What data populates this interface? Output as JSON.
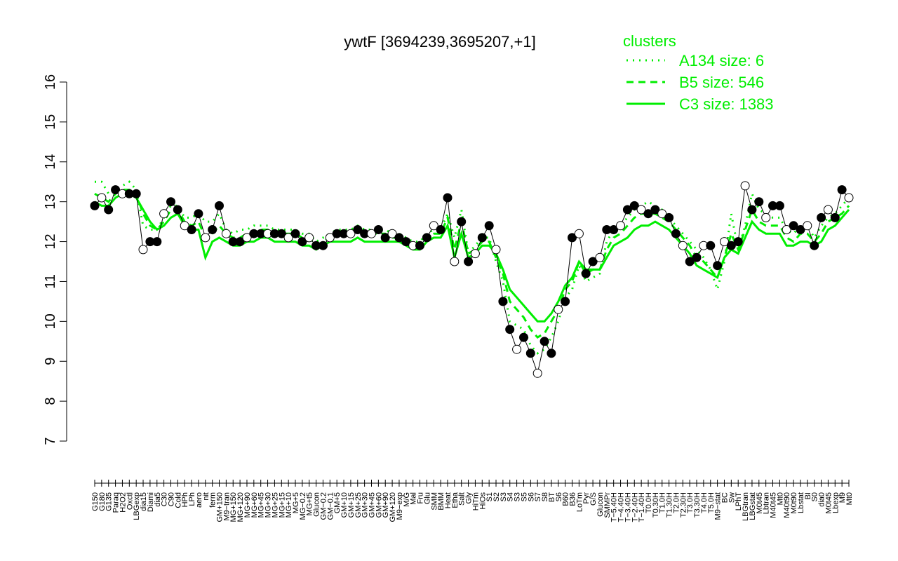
{
  "chart_data": {
    "type": "line",
    "title": "ywtF [3694239,3695207,+1]",
    "xlabel": "",
    "ylabel": "",
    "ylim": [
      7,
      16
    ],
    "yticks": [
      7,
      8,
      9,
      10,
      11,
      12,
      13,
      14,
      15,
      16
    ],
    "x_tick_labels": [
      "G150",
      "G180",
      "G135",
      "Paraq",
      "H2O2",
      "Oxctl",
      "LBGexp",
      "dia15",
      "Diami",
      "dia5",
      "C30",
      "C90",
      "Cold",
      "HPh",
      "LPh",
      "aero",
      "nit",
      "ferm",
      "GM+150",
      "M9−tran",
      "MG+150",
      "MG+120",
      "MG+90",
      "MG+60",
      "MG+45",
      "MG+30",
      "MG+25",
      "MG+15",
      "MG+10",
      "MG+5",
      "MG−0.2",
      "MG+t5",
      "Glucon",
      "GM−0.2",
      "GM−0.1",
      "GM+5",
      "GM+10",
      "GM+15",
      "GM+25",
      "GM+30",
      "GM+45",
      "GM+60",
      "GM+90",
      "GM+120",
      "M9−exp",
      "M/G",
      "Mal",
      "Fru",
      "Glu",
      "SMM",
      "BMM",
      "Heat",
      "Etha",
      "Salt",
      "Gly",
      "HiTm",
      "HiOs",
      "S1",
      "S2",
      "S3",
      "S4",
      "S3",
      "S5",
      "S6",
      "S7",
      "S8",
      "BT",
      "S6",
      "B60",
      "B36",
      "LoTm",
      "Pyr",
      "G/S",
      "Glucon",
      "SMMPr",
      "T−5.40H",
      "T−4.40H",
      "T−3.40H",
      "T−2.40H",
      "T−1.40H",
      "T0.0H",
      "T0.30H",
      "T1.0H",
      "T1.30H",
      "T2.0H",
      "T2.30H",
      "T3.0H",
      "T3.30H",
      "T4.0H",
      "T5.0H",
      "M9−stat",
      "BC",
      "Sw",
      "LPhT",
      "LBGtran",
      "LBGstat",
      "M0t45",
      "Lbtran",
      "M40t45",
      "Mt0",
      "M40t90",
      "M0t90",
      "Lbstat",
      "BI",
      "S0",
      "dia0",
      "M0t45",
      "Lbexp",
      "M9",
      "Mt0"
    ],
    "series": [
      {
        "name": "A134 size: 6",
        "style": "dotted",
        "color": "#00ee00",
        "values": [
          13.5,
          13.5,
          13.2,
          13.3,
          13.4,
          13.5,
          13.3,
          12.4,
          12.3,
          12.3,
          12.6,
          12.9,
          12.9,
          12.6,
          12.6,
          12.7,
          12.5,
          12.5,
          12.7,
          12.3,
          12.2,
          12.3,
          12.3,
          12.4,
          12.4,
          12.4,
          12.3,
          12.3,
          12.3,
          12.3,
          12.2,
          12.2,
          12.0,
          12.1,
          12.2,
          12.3,
          12.3,
          12.3,
          12.4,
          12.3,
          12.3,
          12.3,
          12.3,
          12.2,
          12.2,
          12.1,
          12.0,
          12.0,
          12.2,
          12.3,
          12.3,
          12.7,
          12.1,
          12.8,
          11.7,
          11.9,
          12.1,
          12.1,
          11.5,
          11.0,
          10.0,
          9.9,
          9.8,
          9.4,
          9.2,
          9.3,
          9.6,
          10.0,
          10.6,
          10.8,
          11.4,
          11.0,
          11.1,
          11.2,
          12.0,
          12.3,
          12.4,
          12.6,
          12.8,
          12.9,
          13.0,
          12.9,
          12.8,
          12.6,
          12.4,
          12.2,
          12.0,
          11.8,
          11.6,
          11.3,
          10.8,
          11.5,
          12.7,
          11.8,
          12.4,
          13.2,
          12.8,
          12.7,
          12.6,
          12.6,
          12.3,
          12.2,
          12.4,
          12.4,
          12.1,
          12.4,
          12.6,
          12.7,
          12.9,
          13.1
        ]
      },
      {
        "name": "B5 size: 546",
        "style": "dashed",
        "color": "#00ee00",
        "values": [
          13.2,
          13.1,
          13.0,
          13.2,
          13.3,
          13.3,
          13.2,
          12.7,
          12.4,
          12.3,
          12.5,
          12.8,
          12.8,
          12.5,
          12.4,
          12.5,
          12.1,
          12.2,
          12.4,
          12.2,
          12.1,
          12.1,
          12.2,
          12.2,
          12.3,
          12.3,
          12.2,
          12.2,
          12.2,
          12.2,
          12.1,
          12.1,
          11.9,
          12.0,
          12.1,
          12.2,
          12.2,
          12.2,
          12.3,
          12.2,
          12.2,
          12.2,
          12.2,
          12.1,
          12.1,
          12.0,
          11.9,
          11.9,
          12.1,
          12.2,
          12.2,
          12.6,
          11.8,
          12.5,
          11.7,
          11.8,
          12.0,
          12.0,
          11.6,
          11.2,
          10.5,
          10.3,
          10.1,
          9.8,
          9.6,
          9.7,
          10.0,
          10.3,
          10.8,
          11.0,
          11.5,
          11.2,
          11.3,
          11.3,
          11.8,
          12.1,
          12.2,
          12.4,
          12.6,
          12.7,
          12.7,
          12.7,
          12.6,
          12.5,
          12.3,
          12.1,
          11.9,
          11.6,
          11.5,
          11.3,
          11.1,
          11.6,
          12.2,
          11.8,
          12.3,
          12.8,
          12.5,
          12.4,
          12.4,
          12.4,
          12.1,
          12.0,
          12.2,
          12.2,
          12.0,
          12.2,
          12.5,
          12.6,
          12.7,
          12.9
        ]
      },
      {
        "name": "C3 size: 1383",
        "style": "solid",
        "color": "#00ee00",
        "values": [
          13.0,
          12.9,
          12.9,
          13.1,
          13.2,
          13.2,
          13.1,
          12.8,
          12.5,
          12.3,
          12.4,
          12.6,
          12.7,
          12.4,
          12.3,
          12.3,
          11.6,
          12.0,
          12.1,
          12.0,
          11.9,
          11.9,
          12.0,
          12.0,
          12.1,
          12.1,
          12.0,
          12.0,
          12.0,
          12.0,
          11.9,
          11.9,
          11.8,
          11.9,
          12.0,
          12.0,
          12.0,
          12.0,
          12.1,
          12.0,
          12.0,
          12.0,
          12.0,
          12.0,
          12.0,
          11.9,
          11.8,
          11.8,
          12.0,
          12.1,
          12.1,
          12.4,
          11.6,
          12.2,
          11.6,
          11.7,
          11.9,
          11.9,
          11.7,
          11.3,
          10.8,
          10.6,
          10.4,
          10.2,
          10.0,
          10.0,
          10.2,
          10.5,
          10.9,
          11.1,
          11.5,
          11.3,
          11.3,
          11.3,
          11.6,
          11.9,
          12.0,
          12.1,
          12.3,
          12.4,
          12.4,
          12.5,
          12.4,
          12.3,
          12.1,
          11.9,
          11.7,
          11.4,
          11.3,
          11.2,
          11.1,
          11.6,
          11.8,
          11.7,
          12.1,
          12.5,
          12.3,
          12.2,
          12.2,
          12.2,
          11.9,
          11.9,
          12.0,
          12.0,
          11.9,
          12.0,
          12.3,
          12.4,
          12.6,
          12.8
        ]
      },
      {
        "name": "",
        "style": "points",
        "color": "#000000",
        "values": [
          12.9,
          13.1,
          12.8,
          13.3,
          13.2,
          13.2,
          13.2,
          11.8,
          12.0,
          12.0,
          12.7,
          13.0,
          12.8,
          12.4,
          12.3,
          12.7,
          12.1,
          12.3,
          12.9,
          12.2,
          12.0,
          12.0,
          12.1,
          12.2,
          12.2,
          12.2,
          12.2,
          12.2,
          12.1,
          12.2,
          12.0,
          12.1,
          11.9,
          11.9,
          12.1,
          12.2,
          12.2,
          12.2,
          12.3,
          12.2,
          12.2,
          12.3,
          12.1,
          12.2,
          12.1,
          12.0,
          11.9,
          11.9,
          12.1,
          12.4,
          12.3,
          13.1,
          11.5,
          12.5,
          11.5,
          11.7,
          12.1,
          12.4,
          11.8,
          10.5,
          9.8,
          9.3,
          9.6,
          9.2,
          8.7,
          9.5,
          9.2,
          10.3,
          10.5,
          12.1,
          12.2,
          11.2,
          11.5,
          11.6,
          12.3,
          12.3,
          12.4,
          12.8,
          12.9,
          12.8,
          12.7,
          12.8,
          12.7,
          12.6,
          12.2,
          11.9,
          11.5,
          11.6,
          11.9,
          11.9,
          11.4,
          12.0,
          11.9,
          12.0,
          13.4,
          12.8,
          13.0,
          12.6,
          12.9,
          12.9,
          12.3,
          12.4,
          12.3,
          12.4,
          11.9,
          12.6,
          12.8,
          12.6,
          13.3,
          13.1
        ]
      }
    ],
    "legend": {
      "title": "clusters",
      "position": "top-right",
      "entries": [
        "A134 size: 6",
        "B5 size: 546",
        "C3 size: 1383"
      ]
    },
    "grid": false
  }
}
